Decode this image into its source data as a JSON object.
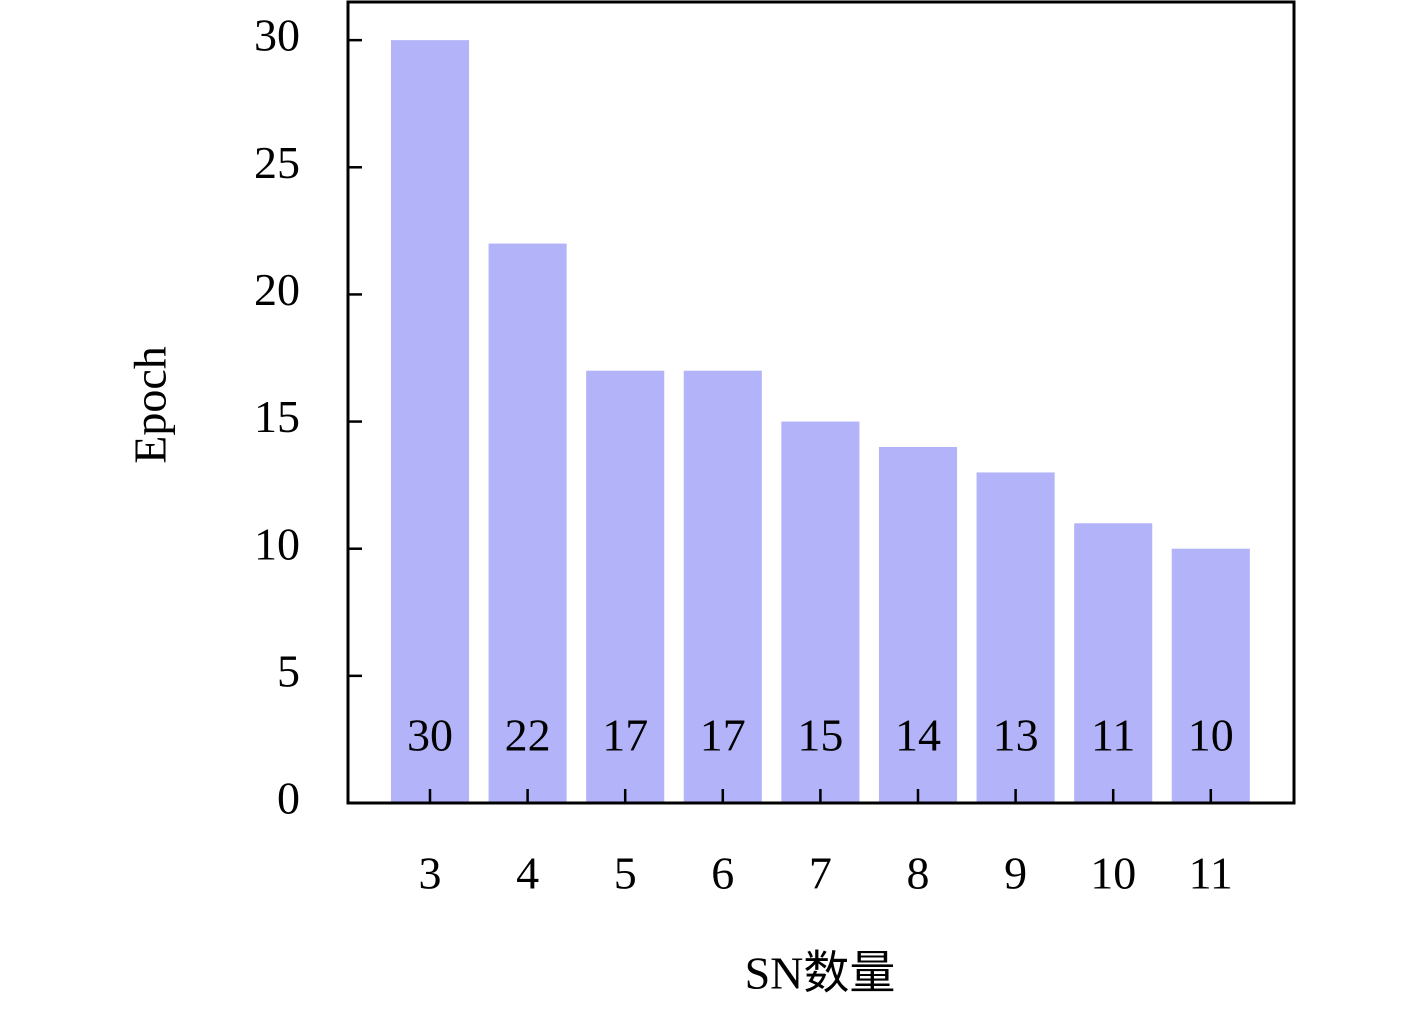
{
  "chart_data": {
    "type": "bar",
    "xlabel": "SN数量",
    "ylabel": "Epoch",
    "categories": [
      "3",
      "4",
      "5",
      "6",
      "7",
      "8",
      "9",
      "10",
      "11"
    ],
    "values": [
      30,
      22,
      17,
      17,
      15,
      14,
      13,
      11,
      10
    ],
    "color": "#b3b3fa",
    "ylim": [
      0,
      31.5
    ],
    "yticks": [
      0,
      5,
      10,
      15,
      20,
      25,
      30
    ],
    "grid": false,
    "data_labels": true
  }
}
